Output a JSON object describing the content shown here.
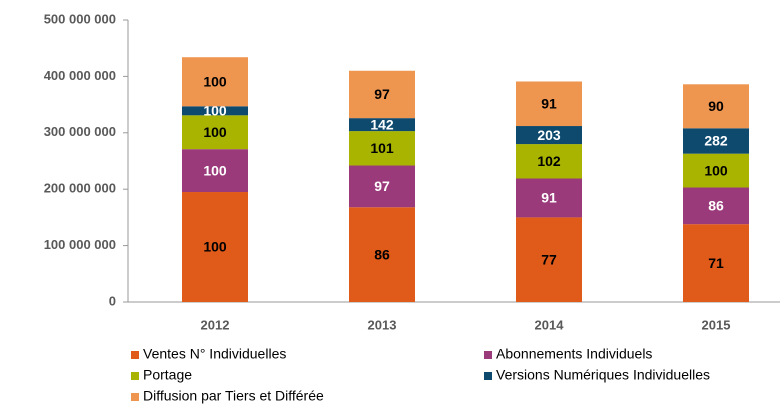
{
  "chart_data": {
    "type": "stacked_bar",
    "categories": [
      "2012",
      "2013",
      "2014",
      "2015"
    ],
    "series": [
      {
        "name": "Ventes N° Individuelles",
        "color": "#e05a1a",
        "label_color": "#000000",
        "values": [
          195000000,
          168000000,
          150000000,
          138000000
        ],
        "value_labels": [
          "100",
          "86",
          "77",
          "71"
        ]
      },
      {
        "name": "Abonnements Individuels",
        "color": "#9b3a7a",
        "label_color": "#ffffff",
        "values": [
          76000000,
          74000000,
          69000000,
          65000000
        ],
        "value_labels": [
          "100",
          "97",
          "91",
          "86"
        ]
      },
      {
        "name": "Portage",
        "color": "#a8b400",
        "label_color": "#000000",
        "values": [
          60000000,
          61000000,
          61000000,
          60000000
        ],
        "value_labels": [
          "100",
          "101",
          "102",
          "100"
        ]
      },
      {
        "name": "Versions Numériques Individuelles",
        "color": "#0d4a6e",
        "label_color": "#ffffff",
        "values": [
          16000000,
          23000000,
          32000000,
          45000000
        ],
        "value_labels": [
          "100",
          "142",
          "203",
          "282"
        ]
      },
      {
        "name": "Diffusion par Tiers et Différée",
        "color": "#ee9550",
        "label_color": "#000000",
        "values": [
          87000000,
          84000000,
          79000000,
          78000000
        ],
        "value_labels": [
          "100",
          "97",
          "91",
          "90"
        ]
      }
    ],
    "ylim": [
      0,
      500000000
    ],
    "yticks": [
      0,
      {
        "value": 100000000,
        "label": "100 000 000"
      },
      {
        "value": 200000000,
        "label": "200 000 000"
      },
      {
        "value": 300000000,
        "label": "300 000 000"
      },
      {
        "value": 400000000,
        "label": "400 000 000"
      },
      {
        "value": 500000000,
        "label": "500 000 000"
      }
    ],
    "grid": false
  }
}
